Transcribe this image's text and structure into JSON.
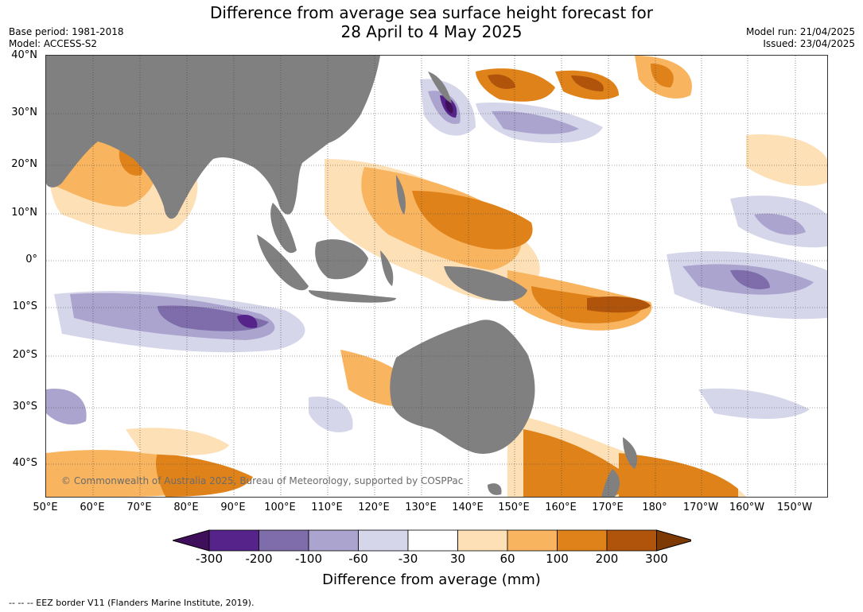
{
  "title_line1": "Difference from average sea surface height forecast for",
  "title_line2": "28 April to 4 May 2025",
  "base_period": "Base period: 1981-2018",
  "model": "Model: ACCESS-S2",
  "model_run": "Model run: 21/04/2025",
  "issued": "Issued: 23/04/2025",
  "copyright": "© Commonwealth of Australia 2025, Bureau of Meteorology, supported by COSPPac",
  "footer": "--  --  -- EEZ border V11 (Flanders Marine Institute, 2019).",
  "map": {
    "lat_labels": [
      "40°N",
      "30°N",
      "20°N",
      "10°N",
      "0°",
      "10°S",
      "20°S",
      "30°S",
      "40°S"
    ],
    "lon_labels": [
      "50°E",
      "60°E",
      "70°E",
      "80°E",
      "90°E",
      "100°E",
      "110°E",
      "120°E",
      "130°E",
      "140°E",
      "150°E",
      "160°E",
      "170°E",
      "180°",
      "170°W",
      "160°W",
      "150°W"
    ],
    "land_color": "#808080",
    "grid_style": "dotted"
  },
  "colorbar": {
    "label": "Difference from average (mm)",
    "ticks": [
      "-300",
      "-200",
      "-100",
      "-60",
      "-30",
      "30",
      "60",
      "100",
      "200",
      "300"
    ],
    "colors": [
      "#3f0f5c",
      "#55238a",
      "#7e6daa",
      "#aba4cf",
      "#d6d6ea",
      "#ffffff",
      "#fde0b6",
      "#f8b45f",
      "#e0821a",
      "#b0540b",
      "#7e3a05"
    ]
  },
  "chart_data": {
    "type": "heatmap",
    "title": "Difference from average sea surface height forecast for 28 April to 4 May 2025",
    "variable": "Difference from average (mm)",
    "bins_mm": [
      -300,
      -200,
      -100,
      -60,
      -30,
      30,
      60,
      100,
      200,
      300
    ],
    "lat_range": [
      "46°S",
      "40°N"
    ],
    "lon_range": [
      "50°E",
      "145°W"
    ]
  }
}
